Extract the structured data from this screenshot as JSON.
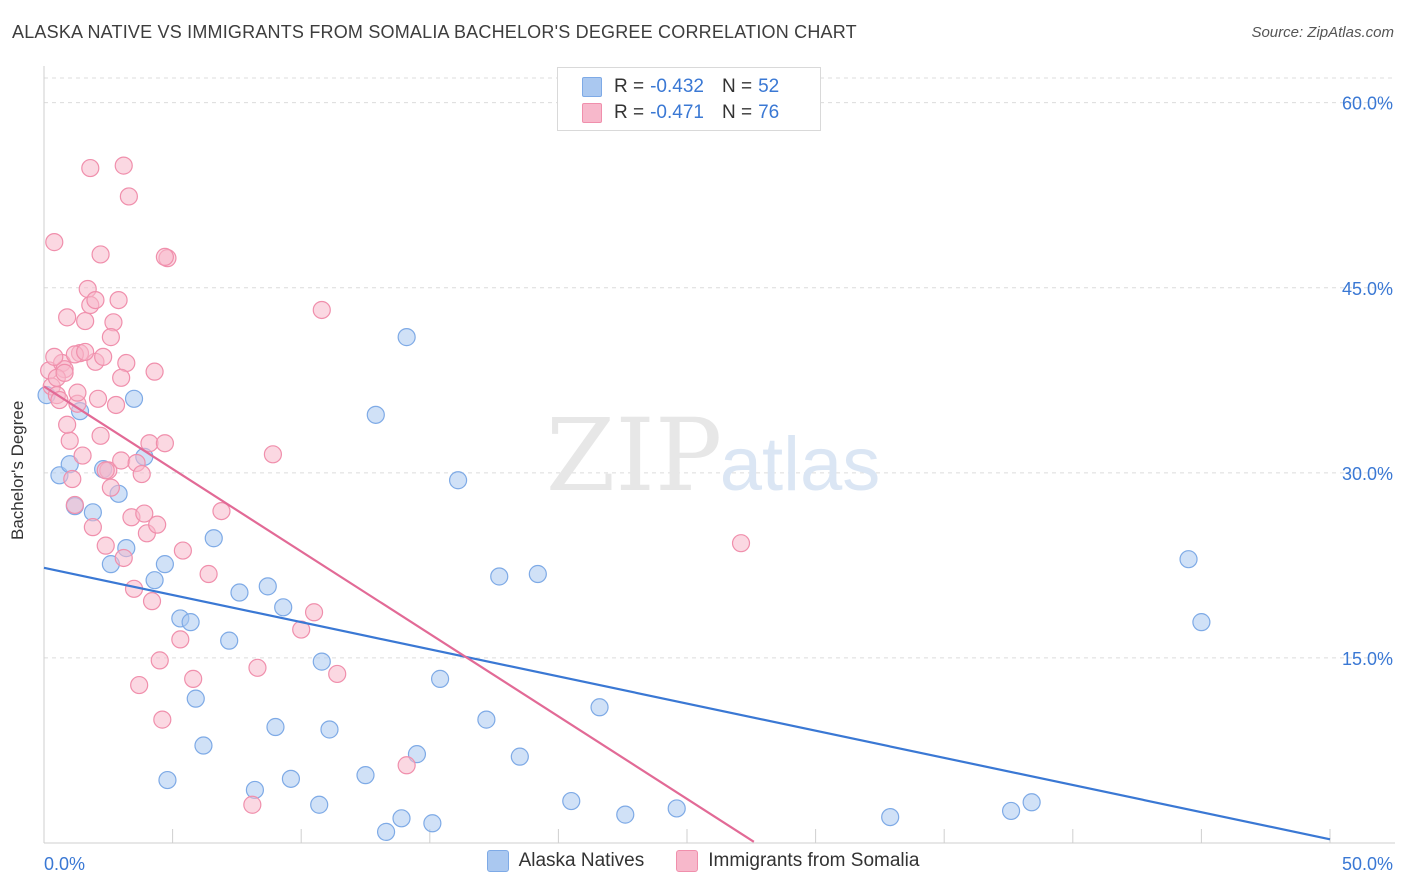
{
  "title": "ALASKA NATIVE VS IMMIGRANTS FROM SOMALIA BACHELOR'S DEGREE CORRELATION CHART",
  "source": "Source: ZipAtlas.com",
  "watermark": {
    "zip": "ZIP",
    "atlas": "atlas"
  },
  "colors": {
    "blue_fill": "#aac8f0",
    "blue_stroke": "#7eaae6",
    "blue_line": "#3a78d4",
    "pink_fill": "#f7b8cb",
    "pink_stroke": "#f08fac",
    "pink_line": "#e26a96",
    "axis_text": "#3a78d4",
    "grid": "#dcdcdc"
  },
  "legend_top": {
    "rows": [
      {
        "r_label": "R =",
        "r_value": "-0.432",
        "n_label": "N =",
        "n_value": "52"
      },
      {
        "r_label": "R =",
        "r_value": "-0.471",
        "n_label": "N =",
        "n_value": "76"
      }
    ]
  },
  "legend_bottom": [
    "Alaska Natives",
    "Immigrants from Somalia"
  ],
  "chart_data": {
    "type": "scatter",
    "ylabel": "Bachelor's Degree",
    "xlim": [
      0,
      50
    ],
    "ylim": [
      0,
      62
    ],
    "x_tick_labels": [
      {
        "value": 0,
        "label": "0.0%"
      },
      {
        "value": 50,
        "label": "50.0%"
      }
    ],
    "y_tick_labels": [
      {
        "value": 15,
        "label": "15.0%"
      },
      {
        "value": 30,
        "label": "30.0%"
      },
      {
        "value": 45,
        "label": "45.0%"
      },
      {
        "value": 60,
        "label": "60.0%"
      }
    ],
    "grid": true,
    "series": [
      {
        "name": "Alaska Natives",
        "trend": {
          "x": [
            0,
            50
          ],
          "y": [
            22.3,
            0.3
          ]
        },
        "points": [
          [
            0.1,
            36.3
          ],
          [
            0.6,
            29.8
          ],
          [
            1.0,
            30.7
          ],
          [
            1.2,
            27.3
          ],
          [
            1.4,
            35.0
          ],
          [
            1.9,
            26.8
          ],
          [
            2.3,
            30.3
          ],
          [
            2.6,
            22.6
          ],
          [
            2.9,
            28.3
          ],
          [
            3.2,
            23.9
          ],
          [
            3.5,
            36.0
          ],
          [
            3.9,
            31.3
          ],
          [
            4.3,
            21.3
          ],
          [
            4.7,
            22.6
          ],
          [
            4.8,
            5.1
          ],
          [
            5.3,
            18.2
          ],
          [
            5.7,
            17.9
          ],
          [
            5.9,
            11.7
          ],
          [
            6.2,
            7.9
          ],
          [
            6.6,
            24.7
          ],
          [
            7.2,
            16.4
          ],
          [
            7.6,
            20.3
          ],
          [
            8.2,
            4.3
          ],
          [
            8.7,
            20.8
          ],
          [
            9.0,
            9.4
          ],
          [
            9.3,
            19.1
          ],
          [
            9.6,
            5.2
          ],
          [
            10.7,
            3.1
          ],
          [
            10.8,
            14.7
          ],
          [
            11.1,
            9.2
          ],
          [
            12.5,
            5.5
          ],
          [
            12.9,
            34.7
          ],
          [
            13.3,
            0.9
          ],
          [
            13.9,
            2.0
          ],
          [
            14.1,
            41.0
          ],
          [
            14.5,
            7.2
          ],
          [
            15.1,
            1.6
          ],
          [
            15.4,
            13.3
          ],
          [
            16.1,
            29.4
          ],
          [
            17.2,
            10.0
          ],
          [
            17.7,
            21.6
          ],
          [
            18.5,
            7.0
          ],
          [
            19.2,
            21.8
          ],
          [
            20.5,
            3.4
          ],
          [
            21.6,
            11.0
          ],
          [
            22.6,
            2.3
          ],
          [
            24.6,
            2.8
          ],
          [
            32.9,
            2.1
          ],
          [
            37.6,
            2.6
          ],
          [
            38.4,
            3.3
          ],
          [
            44.5,
            23.0
          ],
          [
            45.0,
            17.9
          ]
        ]
      },
      {
        "name": "Immigrants from Somalia",
        "trend": {
          "x": [
            0,
            27.6
          ],
          "y": [
            37.0,
            0.1
          ]
        },
        "points": [
          [
            0.2,
            38.3
          ],
          [
            0.3,
            37.0
          ],
          [
            0.4,
            48.7
          ],
          [
            0.5,
            36.3
          ],
          [
            0.6,
            35.9
          ],
          [
            0.7,
            38.9
          ],
          [
            0.8,
            38.4
          ],
          [
            0.9,
            42.6
          ],
          [
            1.0,
            32.6
          ],
          [
            1.1,
            29.5
          ],
          [
            1.2,
            27.4
          ],
          [
            1.3,
            35.6
          ],
          [
            1.4,
            39.7
          ],
          [
            1.5,
            31.4
          ],
          [
            1.6,
            42.3
          ],
          [
            1.7,
            44.9
          ],
          [
            1.8,
            43.6
          ],
          [
            1.9,
            25.6
          ],
          [
            2.0,
            39.0
          ],
          [
            2.1,
            36.0
          ],
          [
            2.2,
            47.7
          ],
          [
            2.3,
            39.4
          ],
          [
            2.4,
            24.1
          ],
          [
            2.5,
            30.2
          ],
          [
            2.6,
            28.8
          ],
          [
            2.7,
            42.2
          ],
          [
            2.8,
            35.5
          ],
          [
            2.9,
            44.0
          ],
          [
            3.0,
            31.0
          ],
          [
            3.1,
            23.1
          ],
          [
            3.2,
            38.9
          ],
          [
            3.3,
            52.4
          ],
          [
            3.4,
            26.4
          ],
          [
            3.5,
            20.6
          ],
          [
            3.6,
            30.8
          ],
          [
            3.7,
            12.8
          ],
          [
            3.8,
            29.9
          ],
          [
            3.9,
            26.7
          ],
          [
            4.0,
            25.1
          ],
          [
            4.1,
            32.4
          ],
          [
            4.2,
            19.6
          ],
          [
            4.3,
            38.2
          ],
          [
            4.4,
            25.8
          ],
          [
            4.5,
            14.8
          ],
          [
            4.6,
            10.0
          ],
          [
            4.7,
            32.4
          ],
          [
            4.8,
            47.4
          ],
          [
            5.3,
            16.5
          ],
          [
            5.4,
            23.7
          ],
          [
            5.8,
            13.3
          ],
          [
            6.4,
            21.8
          ],
          [
            6.9,
            26.9
          ],
          [
            8.1,
            3.1
          ],
          [
            8.3,
            14.2
          ],
          [
            8.9,
            31.5
          ],
          [
            10.0,
            17.3
          ],
          [
            10.5,
            18.7
          ],
          [
            10.8,
            43.2
          ],
          [
            11.4,
            13.7
          ],
          [
            14.1,
            6.3
          ],
          [
            27.1,
            24.3
          ],
          [
            1.8,
            54.7
          ],
          [
            3.1,
            54.9
          ],
          [
            4.7,
            47.5
          ],
          [
            0.4,
            39.4
          ],
          [
            0.5,
            37.7
          ],
          [
            0.8,
            38.1
          ],
          [
            1.2,
            39.6
          ],
          [
            2.0,
            44.0
          ],
          [
            2.6,
            41.0
          ],
          [
            3.0,
            37.7
          ],
          [
            1.6,
            39.8
          ],
          [
            2.2,
            33.0
          ],
          [
            2.4,
            30.2
          ],
          [
            0.9,
            33.9
          ],
          [
            1.3,
            36.5
          ]
        ]
      }
    ]
  }
}
